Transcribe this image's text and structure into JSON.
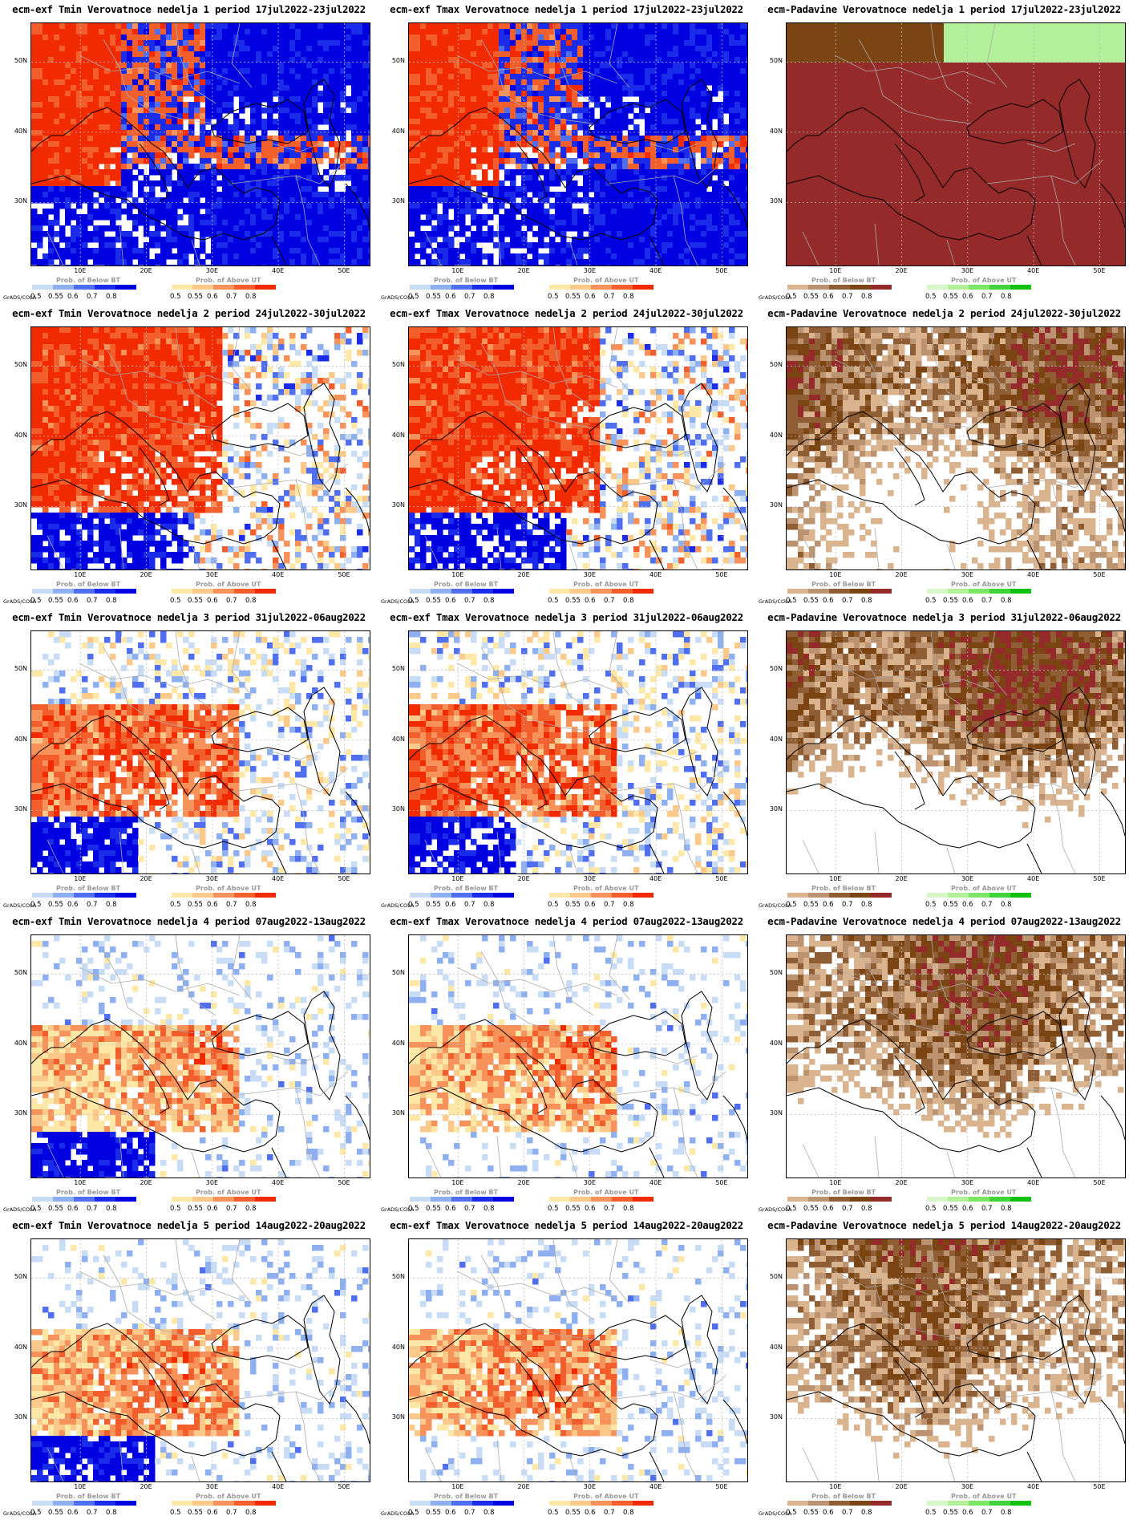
{
  "grads_label": "GrADS/COLA",
  "lat_labels": [
    "50N",
    "40N",
    "30N"
  ],
  "lon_labels": [
    "10E",
    "20E",
    "30E",
    "40E",
    "50E"
  ],
  "colors": {
    "below_temp": [
      "#c9dcf6",
      "#8fb0f0",
      "#4f6ef0",
      "#1b2bea",
      "#0000e0"
    ],
    "above_temp": [
      "#fde8a8",
      "#fbc98a",
      "#f7925a",
      "#f35f2c",
      "#f22a00"
    ],
    "below_precip": [
      "#d9b48f",
      "#bc9370",
      "#8f5e35",
      "#7a4413",
      "#952a2a"
    ],
    "above_precip": [
      "#d8f7c8",
      "#b3f09a",
      "#7be564",
      "#3fd53a",
      "#11c10e"
    ],
    "border": "#aaaaaa",
    "coast": "#000000"
  },
  "legends": {
    "temp_below": {
      "title": "Prob. of Below BT",
      "ticks": [
        "0.5",
        "0.55",
        "0.6",
        "0.7",
        "0.8"
      ]
    },
    "temp_above": {
      "title": "Prob. of Above UT",
      "ticks": [
        "0.5",
        "0.55",
        "0.6",
        "0.7",
        "0.8"
      ]
    },
    "precip_below": {
      "title": "Prob. of Below BT",
      "ticks": [
        "0.5",
        "0.55",
        "0.6",
        "0.7",
        "0.8"
      ]
    },
    "precip_above": {
      "title": "Prob. of Above UT",
      "ticks": [
        "0.5",
        "0.55",
        "0.6",
        "0.7",
        "0.8"
      ]
    }
  },
  "panels": [
    {
      "title": "ecm-exf Tmin Verovatnoce nedelja 1 period 17jul2022-23jul2022",
      "variable": "tmin",
      "week": 1
    },
    {
      "title": "ecm-exf Tmax Verovatnoce nedelja 1 period 17jul2022-23jul2022",
      "variable": "tmax",
      "week": 1
    },
    {
      "title": "ecm-Padavine Verovatnoce nedelja 1 period 17jul2022-23jul2022",
      "variable": "precip",
      "week": 1
    },
    {
      "title": "ecm-exf Tmin Verovatnoce nedelja 2 period 24jul2022-30jul2022",
      "variable": "tmin",
      "week": 2
    },
    {
      "title": "ecm-exf Tmax Verovatnoce nedelja 2 period 24jul2022-30jul2022",
      "variable": "tmax",
      "week": 2
    },
    {
      "title": "ecm-Padavine Verovatnoce nedelja 2 period 24jul2022-30jul2022",
      "variable": "precip",
      "week": 2
    },
    {
      "title": "ecm-exf Tmin Verovatnoce nedelja 3 period 31jul2022-06aug2022",
      "variable": "tmin",
      "week": 3
    },
    {
      "title": "ecm-exf Tmax Verovatnoce nedelja 3 period 31jul2022-06aug2022",
      "variable": "tmax",
      "week": 3
    },
    {
      "title": "ecm-Padavine Verovatnoce nedelja 3 period 31jul2022-06aug2022",
      "variable": "precip",
      "week": 3
    },
    {
      "title": "ecm-exf Tmin Verovatnoce nedelja 4 period 07aug2022-13aug2022",
      "variable": "tmin",
      "week": 4
    },
    {
      "title": "ecm-exf Tmax Verovatnoce nedelja 4 period 07aug2022-13aug2022",
      "variable": "tmax",
      "week": 4
    },
    {
      "title": "ecm-Padavine Verovatnoce nedelja 4 period 07aug2022-13aug2022",
      "variable": "precip",
      "week": 4
    },
    {
      "title": "ecm-exf Tmin Verovatnoce nedelja 5 period 14aug2022-20aug2022",
      "variable": "tmin",
      "week": 5
    },
    {
      "title": "ecm-exf Tmax Verovatnoce nedelja 5 period 14aug2022-20aug2022",
      "variable": "tmax",
      "week": 5
    },
    {
      "title": "ecm-Padavine Verovatnoce nedelja 5 period 14aug2022-20aug2022",
      "variable": "precip",
      "week": 5
    }
  ]
}
